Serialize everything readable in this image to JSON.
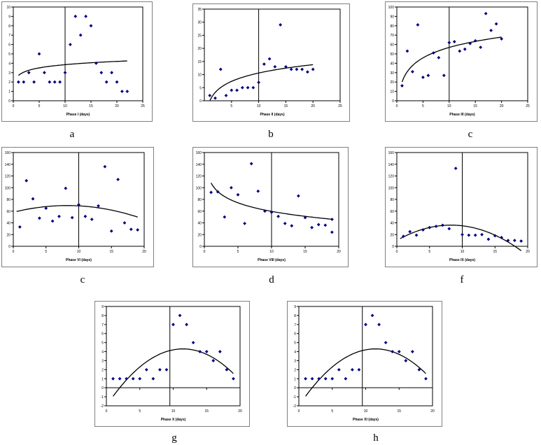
{
  "chart_data": [
    {
      "type": "scatter",
      "caption": "a",
      "xlabel": "Phase I (days)",
      "xlim": [
        0,
        25
      ],
      "ylim": [
        0,
        10
      ],
      "xticks": [
        0,
        5,
        10,
        15,
        20,
        25
      ],
      "yticks": [
        0,
        1,
        2,
        3,
        4,
        5,
        6,
        7,
        8,
        9,
        10
      ],
      "vline": 10,
      "x": [
        1,
        2,
        3,
        4,
        5,
        6,
        7,
        8,
        9,
        10,
        11,
        12,
        13,
        14,
        15,
        16,
        17,
        18,
        19,
        20,
        21,
        22
      ],
      "y": [
        2,
        2,
        3,
        2,
        5,
        3,
        2,
        2,
        2,
        3,
        6,
        9,
        7,
        9,
        8,
        4,
        3,
        2,
        3,
        2,
        1,
        1
      ],
      "trend": {
        "model": "log",
        "a": 2.7,
        "b": 0.5
      }
    },
    {
      "type": "scatter",
      "caption": "b",
      "xlabel": "Phase II (days)",
      "xlim": [
        0,
        25
      ],
      "ylim": [
        0,
        35
      ],
      "xticks": [
        5,
        10,
        15,
        20,
        25
      ],
      "yticks": [
        0,
        5,
        10,
        15,
        20,
        25,
        30,
        35
      ],
      "vline": 10,
      "x": [
        1,
        2,
        3,
        4,
        5,
        6,
        7,
        8,
        9,
        10,
        11,
        12,
        13,
        14,
        15,
        16,
        17,
        18,
        19,
        20
      ],
      "y": [
        2,
        1,
        12,
        2,
        4,
        4,
        5,
        5,
        5,
        7,
        14,
        16,
        13,
        29,
        13,
        12,
        12,
        12,
        11,
        12
      ],
      "trend": {
        "model": "log",
        "a": 0,
        "b": 4.6
      }
    },
    {
      "type": "scatter",
      "caption": "c",
      "xlabel": "Phase III (days)",
      "xlim": [
        0,
        25
      ],
      "ylim": [
        0,
        100
      ],
      "xticks": [
        0,
        5,
        10,
        15,
        20,
        25
      ],
      "yticks": [
        0,
        10,
        20,
        30,
        40,
        50,
        60,
        70,
        80,
        90,
        100
      ],
      "vline": 10,
      "x": [
        1,
        2,
        3,
        4,
        5,
        6,
        7,
        8,
        9,
        10,
        11,
        12,
        13,
        14,
        15,
        16,
        17,
        18,
        19,
        20
      ],
      "y": [
        16,
        53,
        31,
        81,
        25,
        27,
        51,
        46,
        27,
        62,
        63,
        53,
        55,
        61,
        64,
        57,
        93,
        75,
        82,
        66
      ],
      "trend": {
        "model": "log",
        "a": 20,
        "b": 16
      }
    },
    {
      "type": "scatter",
      "caption": "c",
      "xlabel": "Phase VI (days)",
      "xlim": [
        0,
        20
      ],
      "ylim": [
        0,
        160
      ],
      "xticks": [
        0,
        5,
        10,
        15,
        20
      ],
      "yticks": [
        0,
        20,
        40,
        60,
        80,
        100,
        120,
        140,
        160
      ],
      "vline": 10,
      "x": [
        1,
        2,
        3,
        4,
        5,
        6,
        7,
        8,
        9,
        10,
        11,
        12,
        13,
        14,
        15,
        16,
        17,
        18,
        19
      ],
      "y": [
        33,
        112,
        81,
        48,
        65,
        43,
        51,
        99,
        49,
        71,
        51,
        46,
        69,
        136,
        26,
        114,
        40,
        29,
        28
      ],
      "trend": {
        "model": "poly",
        "coef": [
          58,
          2.8,
          -0.17
        ],
        "from": 0.5,
        "to": 19
      }
    },
    {
      "type": "scatter",
      "caption": "d",
      "xlabel": "Phase VIII (days)",
      "xlim": [
        0,
        20
      ],
      "ylim": [
        0,
        160
      ],
      "xticks": [
        0,
        5,
        10,
        15,
        20
      ],
      "yticks": [
        0,
        20,
        40,
        60,
        80,
        100,
        120,
        140,
        160
      ],
      "vline": 10,
      "x": [
        1,
        2,
        3,
        4,
        5,
        6,
        7,
        8,
        9,
        10,
        11,
        12,
        13,
        14,
        15,
        16,
        17,
        18,
        19
      ],
      "y": [
        92,
        93,
        50,
        100,
        88,
        39,
        141,
        94,
        60,
        58,
        51,
        39,
        35,
        86,
        49,
        32,
        37,
        36,
        46
      ],
      "trend": {
        "model": "log",
        "a": 108,
        "b": -21
      },
      "extra": [
        [
          19,
          24
        ]
      ]
    },
    {
      "type": "scatter",
      "caption": "f",
      "xlabel": "Phase IX (days)",
      "xlim": [
        0,
        20
      ],
      "ylim": [
        0,
        160
      ],
      "xticks": [
        0,
        5,
        10,
        15,
        20
      ],
      "yticks": [
        0,
        20,
        40,
        60,
        80,
        100,
        120,
        140,
        160
      ],
      "vline": 10,
      "x": [
        1,
        2,
        3,
        4,
        5,
        6,
        7,
        8,
        9,
        10,
        11,
        12,
        13,
        14,
        15,
        16,
        17,
        18,
        19
      ],
      "y": [
        17,
        25,
        19,
        28,
        32,
        34,
        36,
        30,
        133,
        20,
        19,
        19,
        20,
        12,
        18,
        15,
        10,
        10,
        9
      ],
      "trend": {
        "model": "poly",
        "coef": [
          10,
          6.3,
          -0.38
        ],
        "from": 0.5,
        "to": 19
      }
    },
    {
      "type": "scatter",
      "caption": "g",
      "xlabel": "Phase X (days)",
      "xlim": [
        0,
        20
      ],
      "ylim": [
        -2,
        9
      ],
      "xticks": [
        0,
        5,
        10,
        15,
        20
      ],
      "yticks": [
        -2,
        -1,
        0,
        1,
        2,
        3,
        4,
        5,
        6,
        7,
        8,
        9
      ],
      "vline": 9.5,
      "x": [
        1,
        2,
        3,
        4,
        5,
        6,
        7,
        8,
        9,
        10,
        11,
        12,
        13,
        14,
        15,
        16,
        17,
        18,
        19
      ],
      "y": [
        1,
        1,
        1,
        1,
        1,
        2,
        1,
        2,
        2,
        7,
        8,
        7,
        5,
        4,
        4,
        3,
        4,
        2,
        1
      ],
      "trend": {
        "model": "poly",
        "coef": [
          -2,
          1.1,
          -0.048
        ],
        "from": 1,
        "to": 19
      }
    },
    {
      "type": "scatter",
      "caption": "h",
      "xlabel": "Phase XI (days)",
      "xlim": [
        0,
        20
      ],
      "ylim": [
        -2,
        9
      ],
      "xticks": [
        0,
        5,
        10,
        15,
        20
      ],
      "yticks": [
        -2,
        -1,
        0,
        1,
        2,
        3,
        4,
        5,
        6,
        7,
        8,
        9
      ],
      "vline": 9.5,
      "x": [
        1,
        2,
        3,
        4,
        5,
        6,
        7,
        8,
        9,
        10,
        11,
        12,
        13,
        14,
        15,
        16,
        17,
        18,
        19
      ],
      "y": [
        1,
        1,
        1,
        1,
        1,
        2,
        1,
        2,
        2,
        7,
        8,
        7,
        5,
        4,
        4,
        3,
        4,
        2,
        1
      ],
      "trend": {
        "model": "poly",
        "coef": [
          -2,
          1.1,
          -0.048
        ],
        "from": 1,
        "to": 19
      }
    }
  ],
  "colors": {
    "marker": "#00007f",
    "line": "#000000",
    "frame": "#000000",
    "outer_border": "#808080"
  }
}
